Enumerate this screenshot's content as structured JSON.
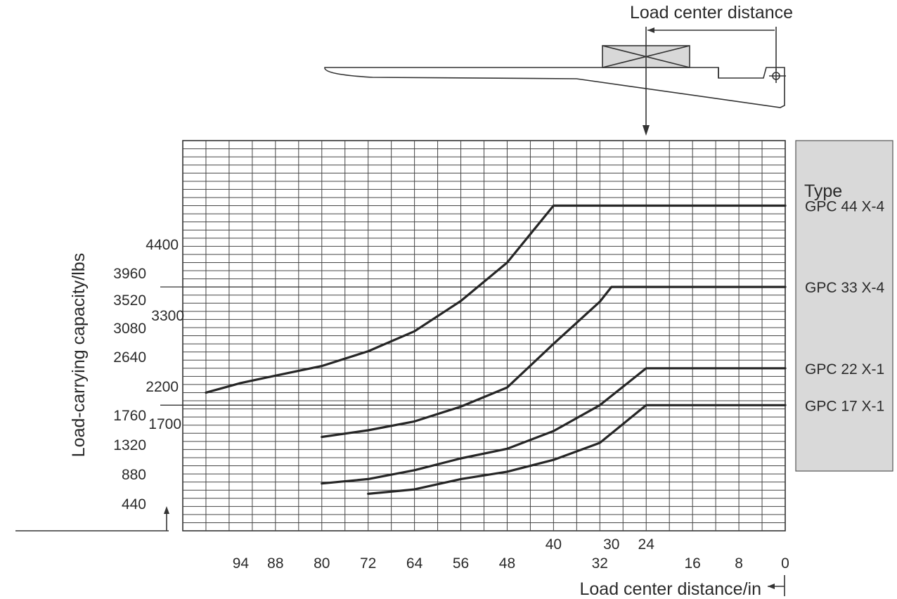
{
  "chart_data": {
    "type": "line",
    "title": "",
    "xlabel": "Load center distance/in",
    "ylabel": "Load-carrying capacity/lbs",
    "top_label": "Load center distance",
    "x_reversed": true,
    "xlim": [
      0,
      104
    ],
    "ylim": [
      0,
      5280
    ],
    "grid": true,
    "x_ticks_low": [
      94,
      88,
      80,
      72,
      64,
      56,
      48,
      32,
      16,
      8,
      0
    ],
    "x_ticks_high": [
      40,
      30,
      24
    ],
    "y_ticks": [
      4400,
      3960,
      3520,
      3300,
      3080,
      2640,
      2200,
      1760,
      1700,
      1320,
      880,
      440
    ],
    "legend": {
      "title": "Type",
      "position": "right"
    },
    "series": [
      {
        "name": "GPC 44 X-4",
        "x": [
          100,
          94,
          88,
          80,
          72,
          64,
          56,
          48,
          40,
          24,
          0
        ],
        "y": [
          1870,
          2000,
          2100,
          2230,
          2430,
          2700,
          3110,
          3630,
          4400,
          4400,
          4400
        ]
      },
      {
        "name": "GPC 33 X-4",
        "x": [
          80,
          72,
          64,
          56,
          48,
          40,
          32,
          30,
          24,
          0
        ],
        "y": [
          1270,
          1360,
          1480,
          1680,
          1940,
          2530,
          3100,
          3300,
          3300,
          3300
        ]
      },
      {
        "name": "GPC 22 X-1",
        "x": [
          80,
          72,
          64,
          56,
          48,
          40,
          32,
          24,
          0
        ],
        "y": [
          640,
          700,
          820,
          980,
          1110,
          1350,
          1700,
          2200,
          2200
        ]
      },
      {
        "name": "GPC 17 X-1",
        "x": [
          72,
          64,
          56,
          48,
          40,
          32,
          24,
          0
        ],
        "y": [
          500,
          560,
          700,
          800,
          960,
          1190,
          1700,
          1700
        ]
      }
    ]
  }
}
